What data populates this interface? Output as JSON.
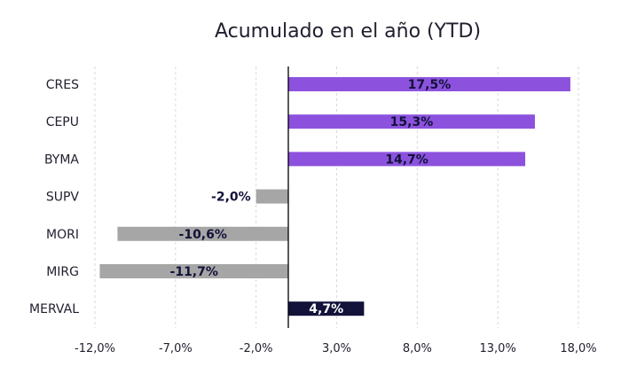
{
  "chart_data": {
    "type": "bar",
    "orientation": "horizontal",
    "title": "Acumulado en el año (YTD)",
    "categories": [
      "CRES",
      "CEPU",
      "BYMA",
      "SUPV",
      "MORI",
      "MIRG",
      "MERVAL"
    ],
    "values": [
      17.5,
      15.3,
      14.7,
      -2.0,
      -10.6,
      -11.7,
      4.7
    ],
    "data_labels": [
      "17,5%",
      "15,3%",
      "14,7%",
      "-2,0%",
      "-10,6%",
      "-11,7%",
      "4,7%"
    ],
    "x_ticks": [
      -12,
      -7,
      -2,
      3,
      8,
      13,
      18
    ],
    "x_tick_labels": [
      "-12,0%",
      "-7,0%",
      "-2,0%",
      "3,0%",
      "8,0%",
      "13,0%",
      "18,0%"
    ],
    "xlim": [
      -12,
      18
    ],
    "grid": true,
    "legend": "none",
    "colors": {
      "positive": "#8c52de",
      "negative": "#a6a6a6",
      "index": "#12123a",
      "label_on_dark": "#ffffff",
      "label_default": "#12123a"
    },
    "highlight_category": "MERVAL"
  }
}
